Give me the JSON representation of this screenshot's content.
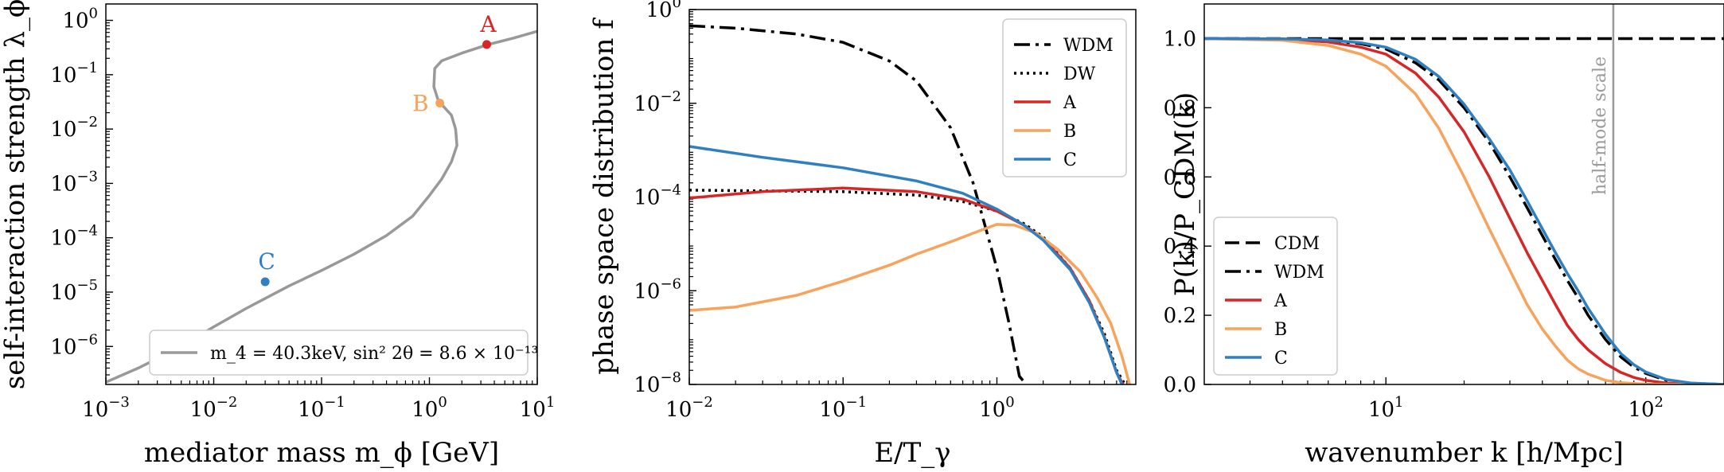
{
  "chart_data": [
    {
      "type": "line",
      "xscale": "log",
      "yscale": "log",
      "xlim": [
        0.001,
        10
      ],
      "ylim": [
        2e-07,
        2
      ],
      "xlabel": "mediator mass m_ϕ [GeV]",
      "ylabel": "self-interaction strength λ_ϕ",
      "xticks": [
        {
          "v": 0.001,
          "b": "10",
          "e": "−3"
        },
        {
          "v": 0.01,
          "b": "10",
          "e": "−2"
        },
        {
          "v": 0.1,
          "b": "10",
          "e": "−1"
        },
        {
          "v": 1,
          "b": "10",
          "e": "0"
        },
        {
          "v": 10,
          "b": "10",
          "e": "1"
        }
      ],
      "yticks": [
        {
          "v": 1e-06,
          "b": "10",
          "e": "−6"
        },
        {
          "v": 1e-05,
          "b": "10",
          "e": "−5"
        },
        {
          "v": 0.0001,
          "b": "10",
          "e": "−4"
        },
        {
          "v": 0.001,
          "b": "10",
          "e": "−3"
        },
        {
          "v": 0.01,
          "b": "10",
          "e": "−2"
        },
        {
          "v": 0.1,
          "b": "10",
          "e": "−1"
        },
        {
          "v": 1,
          "b": "10",
          "e": "0"
        }
      ],
      "series": [
        {
          "name": "m_4 = 40.3keV, sin² 2θ = 8.6 × 10⁻¹³",
          "color": "#999999",
          "x": [
            0.001,
            0.002,
            0.005,
            0.01,
            0.02,
            0.05,
            0.1,
            0.2,
            0.4,
            0.7,
            1.0,
            1.3,
            1.6,
            1.8,
            1.75,
            1.6,
            1.35,
            1.2,
            1.1,
            1.12,
            1.3,
            2.0,
            3.5,
            6.0,
            10
          ],
          "y": [
            2.2e-07,
            4e-07,
            1e-06,
            2.3e-06,
            5e-06,
            1.3e-05,
            2.5e-05,
            5e-05,
            0.00011,
            0.00025,
            0.0006,
            0.0012,
            0.0025,
            0.005,
            0.01,
            0.018,
            0.026,
            0.035,
            0.06,
            0.13,
            0.18,
            0.25,
            0.36,
            0.47,
            0.63
          ]
        }
      ],
      "points": [
        {
          "label": "A",
          "x": 3.4,
          "y": 0.36,
          "color": "#d62728"
        },
        {
          "label": "B",
          "x": 1.25,
          "y": 0.03,
          "color": "#f7a35c"
        },
        {
          "label": "C",
          "x": 0.03,
          "y": 1.55e-05,
          "color": "#2f7fc1"
        }
      ],
      "legend_loc": "lower right"
    },
    {
      "type": "line",
      "xscale": "log",
      "yscale": "log",
      "xlim": [
        0.01,
        8
      ],
      "ylim": [
        1e-08,
        1
      ],
      "xlabel": "E/T_γ",
      "ylabel": "phase space distribution f",
      "xticks": [
        {
          "v": 0.01,
          "b": "10",
          "e": "−2"
        },
        {
          "v": 0.1,
          "b": "10",
          "e": "−1"
        },
        {
          "v": 1,
          "b": "10",
          "e": "0"
        }
      ],
      "yticks": [
        {
          "v": 1e-08,
          "b": "10",
          "e": "−8"
        },
        {
          "v": 1e-06,
          "b": "10",
          "e": "−6"
        },
        {
          "v": 0.0001,
          "b": "10",
          "e": "−4"
        },
        {
          "v": 0.01,
          "b": "10",
          "e": "−2"
        },
        {
          "v": 1,
          "b": "10",
          "e": "0"
        }
      ],
      "series": [
        {
          "name": "WDM",
          "color": "#000000",
          "dash": "dashdot",
          "x": [
            0.01,
            0.02,
            0.05,
            0.1,
            0.2,
            0.3,
            0.5,
            0.7,
            1.0,
            1.2,
            1.4,
            1.55
          ],
          "y": [
            0.45,
            0.4,
            0.3,
            0.2,
            0.08,
            0.03,
            0.003,
            0.0002,
            3e-06,
            2e-07,
            1.5e-08,
            1e-08
          ]
        },
        {
          "name": "DW",
          "color": "#000000",
          "dash": "dotted",
          "x": [
            0.01,
            0.03,
            0.1,
            0.3,
            0.6,
            1.0,
            1.5,
            2.0,
            3.0,
            4.0,
            5.0,
            6.0,
            6.8
          ],
          "y": [
            0.00014,
            0.000135,
            0.00013,
            0.00011,
            8e-05,
            5e-05,
            2.7e-05,
            1.4e-05,
            3e-06,
            6e-07,
            1.2e-07,
            2e-08,
            1e-08
          ]
        },
        {
          "name": "A",
          "color": "#d62728",
          "dash": "solid",
          "x": [
            0.01,
            0.03,
            0.1,
            0.3,
            0.6,
            1.0,
            1.5,
            2.0,
            3.0,
            4.0,
            5.0,
            6.0,
            6.6
          ],
          "y": [
            9.5e-05,
            0.00013,
            0.000155,
            0.00013,
            9e-05,
            5e-05,
            2.5e-05,
            1.3e-05,
            3e-06,
            6e-07,
            1e-07,
            1.8e-08,
            1e-08
          ]
        },
        {
          "name": "B",
          "color": "#f7a35c",
          "dash": "solid",
          "x": [
            0.01,
            0.02,
            0.05,
            0.1,
            0.2,
            0.3,
            0.5,
            0.8,
            1.0,
            1.3,
            1.8,
            2.5,
            3.5,
            4.5,
            5.5,
            6.5,
            7.3
          ],
          "y": [
            3.8e-07,
            4.5e-07,
            8e-07,
            1.6e-06,
            3.5e-06,
            6e-06,
            1.1e-05,
            2e-05,
            2.6e-05,
            2.5e-05,
            1.7e-05,
            7.5e-06,
            2.5e-06,
            7e-07,
            2e-07,
            4e-08,
            1e-08
          ]
        },
        {
          "name": "C",
          "color": "#2f7fc1",
          "dash": "solid",
          "x": [
            0.01,
            0.03,
            0.1,
            0.3,
            0.6,
            1.0,
            1.5,
            2.0,
            3.0,
            4.0,
            5.0,
            6.0,
            6.5
          ],
          "y": [
            0.0012,
            0.0007,
            0.00042,
            0.00022,
            0.00012,
            5.5e-05,
            2.5e-05,
            1.2e-05,
            2.8e-06,
            5.5e-07,
            1e-07,
            1.8e-08,
            1e-08
          ]
        }
      ],
      "legend_loc": "upper right"
    },
    {
      "type": "line",
      "xscale": "log",
      "yscale": "linear",
      "xlim": [
        2,
        200
      ],
      "ylim": [
        0,
        1.1
      ],
      "xlabel": "wavenumber k [h/Mpc]",
      "ylabel": "P(k)/P_CDM(k)",
      "xticks": [
        {
          "v": 10,
          "b": "10",
          "e": "1"
        },
        {
          "v": 100,
          "b": "10",
          "e": "2"
        }
      ],
      "yticks": [
        {
          "v": 0,
          "t": "0.0"
        },
        {
          "v": 0.2,
          "t": "0.2"
        },
        {
          "v": 0.4,
          "t": "0.4"
        },
        {
          "v": 0.6,
          "t": "0.6"
        },
        {
          "v": 0.8,
          "t": "0.8"
        },
        {
          "v": 1.0,
          "t": "1.0"
        }
      ],
      "half_mode": {
        "label": "half-mode scale",
        "k": 75
      },
      "series": [
        {
          "name": "CDM",
          "color": "#000000",
          "dash": "dashed",
          "x": [
            2,
            200
          ],
          "y": [
            1.0,
            1.0
          ]
        },
        {
          "name": "WDM",
          "color": "#000000",
          "dash": "dashdot",
          "x": [
            2,
            4,
            6,
            8,
            10,
            13,
            16,
            20,
            25,
            30,
            35,
            40,
            45,
            50,
            55,
            60,
            70,
            80,
            90,
            100,
            120,
            150,
            200
          ],
          "y": [
            1.0,
            0.999,
            0.995,
            0.985,
            0.97,
            0.93,
            0.88,
            0.8,
            0.7,
            0.6,
            0.51,
            0.43,
            0.36,
            0.3,
            0.25,
            0.2,
            0.13,
            0.08,
            0.05,
            0.032,
            0.012,
            0.003,
            0.0
          ]
        },
        {
          "name": "A",
          "color": "#d62728",
          "dash": "solid",
          "x": [
            2,
            4,
            6,
            8,
            10,
            13,
            16,
            20,
            25,
            30,
            35,
            40,
            45,
            50,
            55,
            60,
            70,
            80,
            90,
            100,
            120,
            150,
            200
          ],
          "y": [
            1.0,
            0.999,
            0.99,
            0.975,
            0.955,
            0.9,
            0.83,
            0.73,
            0.6,
            0.48,
            0.38,
            0.3,
            0.23,
            0.17,
            0.13,
            0.1,
            0.06,
            0.035,
            0.02,
            0.012,
            0.004,
            0.001,
            0.0
          ]
        },
        {
          "name": "B",
          "color": "#f7a35c",
          "dash": "solid",
          "x": [
            2,
            4,
            6,
            8,
            10,
            13,
            16,
            20,
            25,
            30,
            35,
            40,
            45,
            50,
            55,
            60,
            70,
            80,
            100,
            150,
            200
          ],
          "y": [
            1.0,
            0.995,
            0.98,
            0.955,
            0.92,
            0.84,
            0.74,
            0.6,
            0.45,
            0.33,
            0.23,
            0.16,
            0.11,
            0.07,
            0.045,
            0.03,
            0.012,
            0.005,
            0.001,
            0.0,
            0.0
          ]
        },
        {
          "name": "C",
          "color": "#2f7fc1",
          "dash": "solid",
          "x": [
            2,
            4,
            6,
            8,
            10,
            13,
            16,
            20,
            25,
            30,
            35,
            40,
            45,
            50,
            55,
            60,
            70,
            80,
            90,
            100,
            120,
            150,
            200
          ],
          "y": [
            1.0,
            0.999,
            0.996,
            0.988,
            0.975,
            0.94,
            0.89,
            0.81,
            0.71,
            0.62,
            0.53,
            0.45,
            0.38,
            0.32,
            0.27,
            0.22,
            0.145,
            0.09,
            0.057,
            0.036,
            0.014,
            0.004,
            0.0
          ]
        }
      ],
      "legend_loc": "lower left"
    }
  ]
}
